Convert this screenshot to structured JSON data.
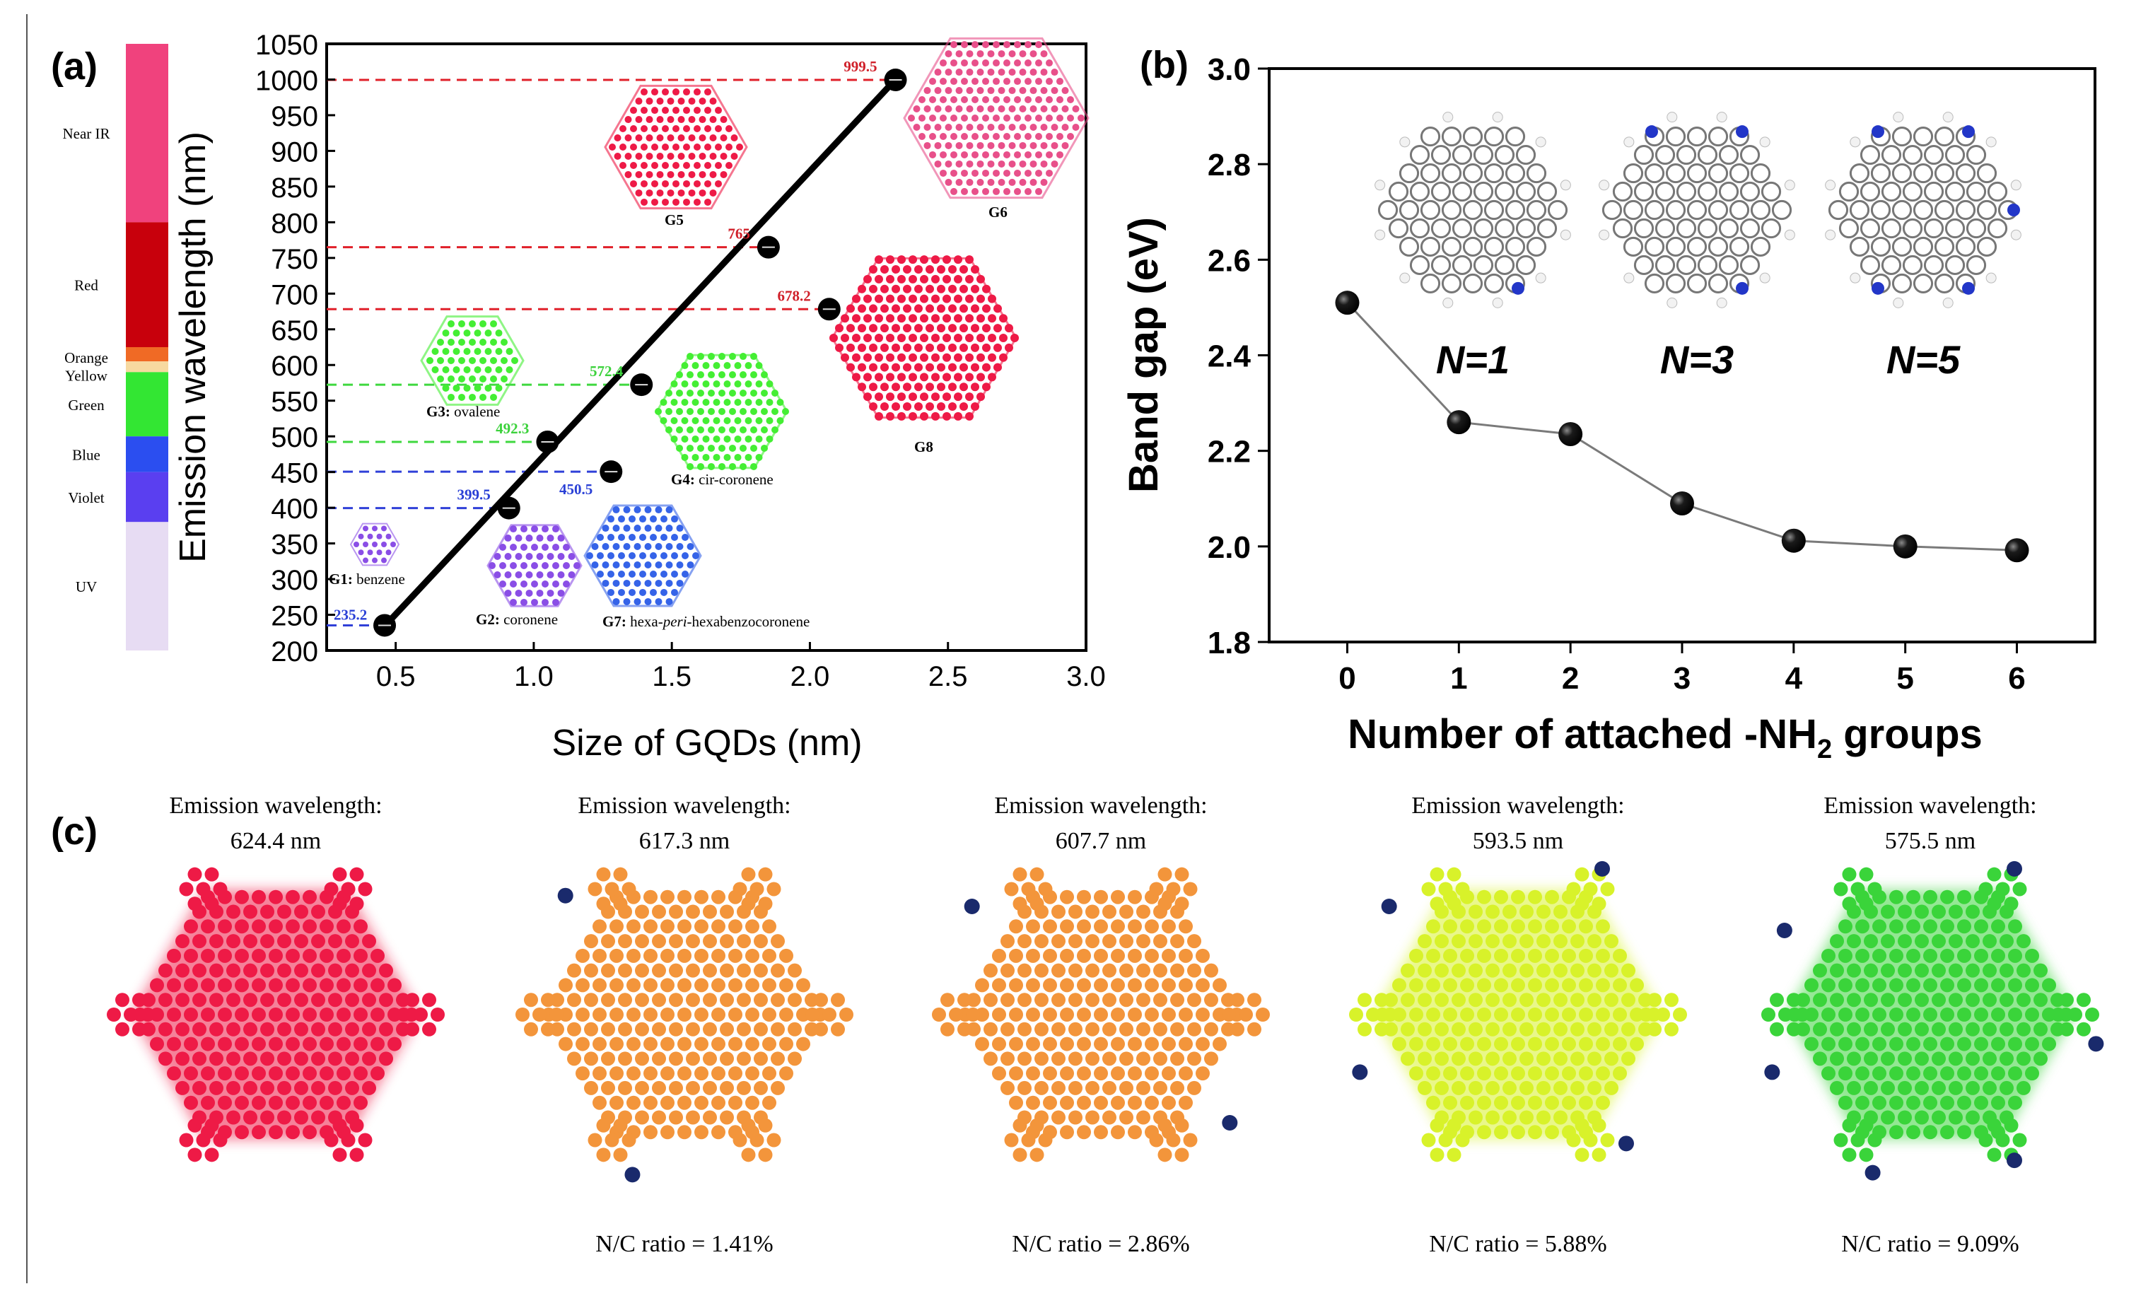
{
  "colors": {
    "nearir": "#f0427d",
    "red": "#c8000c",
    "orange": "#f06a25",
    "yellow": "#f7d9a0",
    "green": "#33e633",
    "blue": "#2b4ef0",
    "violet": "#5a3ff0",
    "uv": "#e7dcf3",
    "mol_red": "#ee1a46",
    "mol_pink": "#e8508a",
    "mol_green": "#44ee33",
    "mol_blue": "#3563e8",
    "mol_violet": "#8a4ee6",
    "mol_orange": "#f3953b",
    "mol_yellow": "#d8f22a",
    "mol_green2": "#3ad43a",
    "dash_red": "#e0202a",
    "dash_green": "#3fd83f",
    "dash_blue": "#3040d8",
    "label_red": "#d0202a",
    "label_green": "#3cd23c",
    "label_blue": "#2a40d6",
    "nitrogen": "#1a2a6c",
    "line_gray": "#7a7a7a"
  },
  "chart_data": [
    {
      "panel": "(a)",
      "type": "scatter",
      "title": "",
      "xlabel": "Size of GQDs (nm)",
      "ylabel": "Emission wavelength (nm)",
      "xlim": [
        0.25,
        3.0
      ],
      "ylim": [
        200,
        1050
      ],
      "xticks": [
        "0.5",
        "1.0",
        "1.5",
        "2.0",
        "2.5",
        "3.0"
      ],
      "xtick_values": [
        0.5,
        1.0,
        1.5,
        2.0,
        2.5,
        3.0
      ],
      "yticks": [
        "200",
        "250",
        "300",
        "350",
        "400",
        "450",
        "500",
        "550",
        "600",
        "650",
        "700",
        "750",
        "800",
        "850",
        "900",
        "950",
        "1000",
        "1050"
      ],
      "ytick_values": [
        200,
        250,
        300,
        350,
        400,
        450,
        500,
        550,
        600,
        650,
        700,
        750,
        800,
        850,
        900,
        950,
        1000,
        1050
      ],
      "points": [
        {
          "x": 0.46,
          "y": 235.2,
          "label": "235.2",
          "color": "blue"
        },
        {
          "x": 0.91,
          "y": 399.5,
          "label": "399.5",
          "color": "blue"
        },
        {
          "x": 1.05,
          "y": 492.3,
          "label": "492.3",
          "color": "green"
        },
        {
          "x": 1.28,
          "y": 450.5,
          "label": "450.5",
          "color": "blue"
        },
        {
          "x": 1.39,
          "y": 572.4,
          "label": "572.4",
          "color": "green"
        },
        {
          "x": 1.85,
          "y": 765,
          "label": "765",
          "color": "red"
        },
        {
          "x": 2.07,
          "y": 678.2,
          "label": "678.2",
          "color": "red"
        },
        {
          "x": 2.31,
          "y": 999.5,
          "label": "999.5",
          "color": "red"
        }
      ],
      "fit_line": {
        "x": [
          0.45,
          2.31
        ],
        "y": [
          230,
          1000
        ]
      },
      "spectrum_bands": [
        {
          "name": "Near IR",
          "from": 800,
          "to": 1050
        },
        {
          "name": "Red",
          "from": 625,
          "to": 800
        },
        {
          "name": "Orange",
          "from": 605,
          "to": 625
        },
        {
          "name": "Yellow",
          "from": 590,
          "to": 605
        },
        {
          "name": "Green",
          "from": 500,
          "to": 590
        },
        {
          "name": "Blue",
          "from": 450,
          "to": 500
        },
        {
          "name": "Violet",
          "from": 380,
          "to": 450
        },
        {
          "name": "UV",
          "from": 200,
          "to": 380
        }
      ],
      "molecule_labels": {
        "g1_bold": "G1:",
        "g1": " benzene",
        "g2_bold": "G2:",
        "g2": " coronene",
        "g3_bold": "G3:",
        "g3": " ovalene",
        "g4_bold": "G4:",
        "g4": " cir-coronene",
        "g5": "G5",
        "g6": "G6",
        "g8": "G8",
        "g7_bold": "G7:",
        "g7_a": " hexa-",
        "g7_b": "peri",
        "g7_c": "-hexabenzocoronene"
      }
    },
    {
      "panel": "(b)",
      "type": "line",
      "title": "",
      "xlabel_a": "Number of attached -NH",
      "xlabel_sub": "2",
      "xlabel_b": " groups",
      "ylabel": "Band gap (eV)",
      "xlim": [
        -0.7,
        6.7
      ],
      "ylim": [
        1.8,
        3.0
      ],
      "x": [
        0,
        1,
        2,
        3,
        4,
        5,
        6
      ],
      "values": [
        2.51,
        2.26,
        2.235,
        2.09,
        2.012,
        2.0,
        1.992
      ],
      "xticks": [
        "0",
        "1",
        "2",
        "3",
        "4",
        "5",
        "6"
      ],
      "yticks": [
        "1.8",
        "2.0",
        "2.2",
        "2.4",
        "2.6",
        "2.8",
        "3.0"
      ],
      "ytick_values": [
        1.8,
        2.0,
        2.2,
        2.4,
        2.6,
        2.8,
        3.0
      ],
      "inset_labels": [
        "N=1",
        "N=3",
        "N=5"
      ]
    }
  ],
  "panel_labels": {
    "a": "(a)",
    "b": "(b)",
    "c": "(c)"
  },
  "panel_c": {
    "heading": "Emission wavelength:",
    "items": [
      {
        "wavelength": "624.4 nm",
        "ratio": ""
      },
      {
        "wavelength": "617.3 nm",
        "ratio": "N/C ratio = 1.41%"
      },
      {
        "wavelength": "607.7 nm",
        "ratio": "N/C ratio = 2.86%"
      },
      {
        "wavelength": "593.5 nm",
        "ratio": "N/C ratio = 5.88%"
      },
      {
        "wavelength": "575.5 nm",
        "ratio": "N/C ratio = 9.09%"
      }
    ]
  }
}
